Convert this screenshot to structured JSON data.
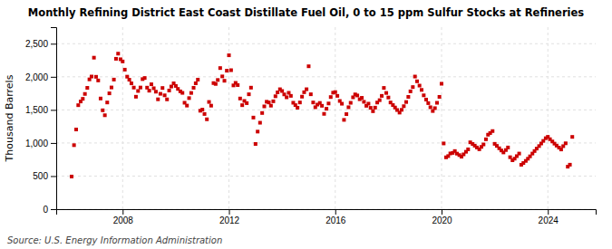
{
  "chart_data": {
    "type": "scatter",
    "title": "Monthly Refining District East Coast Distillate Fuel Oil, 0 to 15 ppm Sulfur Stocks at Refineries",
    "ylabel": "Thousand Barrels",
    "source": "Source: U.S. Energy Information Administration",
    "color": "#CC0000",
    "marker": "square",
    "grid": true,
    "xlim": [
      2005.5,
      2025.8
    ],
    "xticks": [
      2008,
      2012,
      2016,
      2020,
      2024
    ],
    "ylim": [
      0,
      2750
    ],
    "yticks": [
      0,
      500,
      {
        "value": 1000,
        "label": "1,000"
      },
      {
        "value": 1500,
        "label": "1,500"
      },
      {
        "value": 2000,
        "label": "2,000"
      },
      {
        "value": 2500,
        "label": "2,500"
      }
    ],
    "x": [
      2006.08,
      2006.17,
      2006.25,
      2006.33,
      2006.42,
      2006.5,
      2006.58,
      2006.67,
      2006.75,
      2006.83,
      2006.92,
      2007.0,
      2007.08,
      2007.17,
      2007.25,
      2007.33,
      2007.42,
      2007.5,
      2007.58,
      2007.67,
      2007.75,
      2007.83,
      2007.92,
      2008.0,
      2008.08,
      2008.17,
      2008.25,
      2008.33,
      2008.42,
      2008.5,
      2008.58,
      2008.67,
      2008.75,
      2008.83,
      2008.92,
      2009.0,
      2009.08,
      2009.17,
      2009.25,
      2009.33,
      2009.42,
      2009.5,
      2009.58,
      2009.67,
      2009.75,
      2009.83,
      2009.92,
      2010.0,
      2010.08,
      2010.17,
      2010.25,
      2010.33,
      2010.42,
      2010.5,
      2010.58,
      2010.67,
      2010.75,
      2010.83,
      2010.92,
      2011.0,
      2011.08,
      2011.17,
      2011.25,
      2011.33,
      2011.42,
      2011.5,
      2011.58,
      2011.67,
      2011.75,
      2011.83,
      2011.92,
      2012.0,
      2012.08,
      2012.17,
      2012.25,
      2012.33,
      2012.42,
      2012.5,
      2012.58,
      2012.67,
      2012.75,
      2012.83,
      2012.92,
      2013.0,
      2013.08,
      2013.17,
      2013.25,
      2013.33,
      2013.42,
      2013.5,
      2013.58,
      2013.67,
      2013.75,
      2013.83,
      2013.92,
      2014.0,
      2014.08,
      2014.17,
      2014.25,
      2014.33,
      2014.42,
      2014.5,
      2014.58,
      2014.67,
      2014.75,
      2014.83,
      2014.92,
      2015.0,
      2015.08,
      2015.17,
      2015.25,
      2015.33,
      2015.42,
      2015.5,
      2015.58,
      2015.67,
      2015.75,
      2015.83,
      2015.92,
      2016.0,
      2016.08,
      2016.17,
      2016.25,
      2016.33,
      2016.42,
      2016.5,
      2016.58,
      2016.67,
      2016.75,
      2016.83,
      2016.92,
      2017.0,
      2017.08,
      2017.17,
      2017.25,
      2017.33,
      2017.42,
      2017.5,
      2017.58,
      2017.67,
      2017.75,
      2017.83,
      2017.92,
      2018.0,
      2018.08,
      2018.17,
      2018.25,
      2018.33,
      2018.42,
      2018.5,
      2018.58,
      2018.67,
      2018.75,
      2018.83,
      2018.92,
      2019.0,
      2019.08,
      2019.17,
      2019.25,
      2019.33,
      2019.42,
      2019.5,
      2019.58,
      2019.67,
      2019.75,
      2019.83,
      2019.92,
      2020.0,
      2020.08,
      2020.17,
      2020.25,
      2020.33,
      2020.42,
      2020.5,
      2020.58,
      2020.67,
      2020.75,
      2020.83,
      2020.92,
      2021.0,
      2021.08,
      2021.17,
      2021.25,
      2021.33,
      2021.42,
      2021.5,
      2021.58,
      2021.67,
      2021.75,
      2021.83,
      2021.92,
      2022.0,
      2022.08,
      2022.17,
      2022.25,
      2022.33,
      2022.42,
      2022.5,
      2022.58,
      2022.67,
      2022.75,
      2022.83,
      2022.92,
      2023.0,
      2023.08,
      2023.17,
      2023.25,
      2023.33,
      2023.42,
      2023.5,
      2023.58,
      2023.67,
      2023.75,
      2023.83,
      2023.92,
      2024.0,
      2024.08,
      2024.17,
      2024.25,
      2024.33,
      2024.42,
      2024.5,
      2024.58,
      2024.67,
      2024.75,
      2024.83,
      2024.92
    ],
    "values": [
      493,
      967,
      1204,
      1571,
      1627,
      1667,
      1741,
      1833,
      1961,
      2004,
      2289,
      2000,
      1945,
      1672,
      1494,
      1419,
      1612,
      1750,
      1839,
      1958,
      2272,
      2350,
      2265,
      2232,
      2108,
      2002,
      1956,
      1901,
      1837,
      1699,
      1786,
      1838,
      1965,
      1982,
      1836,
      1790,
      1887,
      1827,
      1775,
      1660,
      1743,
      1831,
      1720,
      1659,
      1793,
      1853,
      1901,
      1862,
      1817,
      1780,
      1757,
      1608,
      1565,
      1678,
      1756,
      1834,
      1902,
      1957,
      1487,
      1504,
      1438,
      1358,
      1620,
      1564,
      1905,
      1892,
      1952,
      2132,
      2006,
      1940,
      2092,
      2325,
      2100,
      1870,
      1908,
      1875,
      1672,
      1571,
      1635,
      1602,
      1736,
      1836,
      1384,
      985,
      1172,
      1306,
      1453,
      1553,
      1623,
      1612,
      1564,
      1630,
      1706,
      1765,
      1812,
      1785,
      1734,
      1690,
      1758,
      1712,
      1608,
      1572,
      1533,
      1612,
      1700,
      1767,
      1812,
      2159,
      1736,
      1612,
      1540,
      1580,
      1605,
      1562,
      1440,
      1517,
      1597,
      1694,
      1760,
      1769,
      1712,
      1635,
      1593,
      1349,
      1436,
      1540,
      1607,
      1690,
      1734,
      1718,
      1661,
      1682,
      1622,
      1562,
      1594,
      1531,
      1480,
      1534,
      1611,
      1647,
      1712,
      1832,
      1756,
      1687,
      1612,
      1573,
      1536,
      1498,
      1459,
      1501,
      1556,
      1619,
      1697,
      1780,
      1845,
      2004,
      1932,
      1867,
      1802,
      1720,
      1656,
      1602,
      1540,
      1483,
      1526,
      1607,
      1697,
      1895,
      993,
      783,
      802,
      842,
      850,
      878,
      839,
      817,
      793,
      828,
      867,
      904,
      1010,
      985,
      959,
      932,
      905,
      941,
      978,
      1056,
      1125,
      1150,
      1180,
      987,
      956,
      920,
      887,
      857,
      893,
      932,
      785,
      739,
      763,
      801,
      840,
      671,
      697,
      729,
      762,
      798,
      840,
      878,
      915,
      953,
      992,
      1031,
      1072,
      1093,
      1057,
      1023,
      990,
      960,
      930,
      902,
      952,
      995,
      642,
      672,
      1092
    ]
  }
}
